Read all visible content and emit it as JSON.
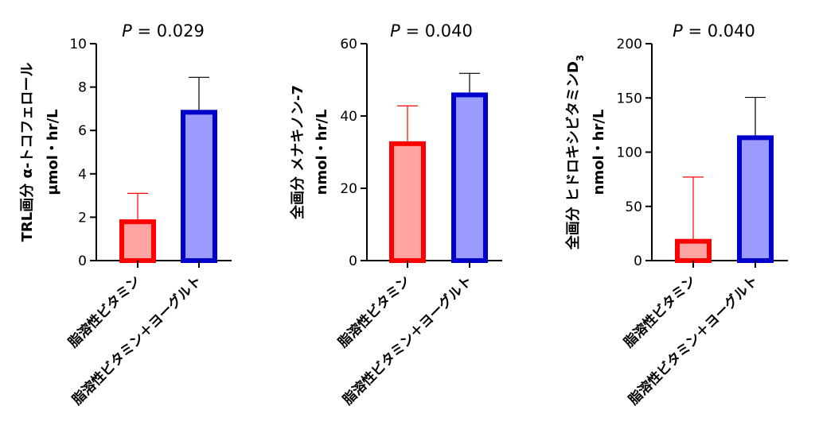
{
  "chart_data": [
    {
      "type": "bar",
      "title_p": "P",
      "title_rest": " = 0.029",
      "ylabel_line1": "TRL画分 α-トコフェロール",
      "ylabel_line2": "μmol・hr/L",
      "ylim": [
        0,
        10
      ],
      "yticks": [
        0,
        2,
        4,
        6,
        8,
        10
      ],
      "categories": [
        "脂溶性ビタミン",
        "脂溶性ビタミン＋ヨーグルト"
      ],
      "values": [
        1.9,
        6.95
      ],
      "errors": [
        1.2,
        1.5
      ],
      "colors": [
        {
          "fill": "#ffa3a3",
          "stroke": "#ff0000"
        },
        {
          "fill": "#9a9aff",
          "stroke": "#0000cc"
        }
      ]
    },
    {
      "type": "bar",
      "title_p": "P",
      "title_rest": " = 0.040",
      "ylabel_line1": "全画分 メナキノン-7",
      "ylabel_line2": "nmol・hr/L",
      "ylim": [
        0,
        60
      ],
      "yticks": [
        0,
        20,
        40,
        60
      ],
      "categories": [
        "脂溶性ビタミン",
        "脂溶性ビタミン＋ヨーグルト"
      ],
      "values": [
        33,
        46.5
      ],
      "errors": [
        9.8,
        5.3
      ],
      "colors": [
        {
          "fill": "#ffa3a3",
          "stroke": "#ff0000"
        },
        {
          "fill": "#9a9aff",
          "stroke": "#0000cc"
        }
      ]
    },
    {
      "type": "bar",
      "title_p": "P",
      "title_rest": " = 0.040",
      "ylabel_line1": "全画分 ヒドロキシビタミンD",
      "ylabel_sub": "3",
      "ylabel_line2": "nmol・hr/L",
      "ylim": [
        0,
        200
      ],
      "yticks": [
        0,
        50,
        100,
        150,
        200
      ],
      "categories": [
        "脂溶性ビタミン",
        "脂溶性ビタミン＋ヨーグルト"
      ],
      "values": [
        20,
        115.5
      ],
      "errors": [
        57,
        35
      ],
      "colors": [
        {
          "fill": "#ffa3a3",
          "stroke": "#ff0000"
        },
        {
          "fill": "#9a9aff",
          "stroke": "#0000cc"
        }
      ]
    }
  ]
}
